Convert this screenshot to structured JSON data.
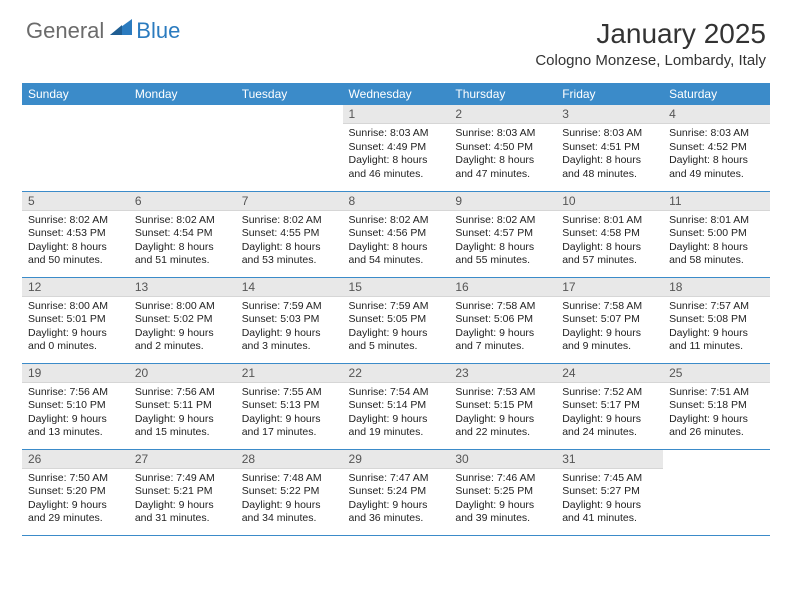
{
  "logo": {
    "general": "General",
    "blue": "Blue"
  },
  "title": "January 2025",
  "location": "Cologno Monzese, Lombardy, Italy",
  "colors": {
    "header_bg": "#3b8bc9",
    "header_text": "#ffffff",
    "daynum_bg": "#e8e8e8",
    "divider": "#3b8bc9",
    "logo_gray": "#6b6b6b",
    "logo_blue": "#2b7bbf"
  },
  "day_headers": [
    "Sunday",
    "Monday",
    "Tuesday",
    "Wednesday",
    "Thursday",
    "Friday",
    "Saturday"
  ],
  "weeks": [
    [
      null,
      null,
      null,
      {
        "n": "1",
        "sr": "8:03 AM",
        "ss": "4:49 PM",
        "dl": "8 hours and 46 minutes."
      },
      {
        "n": "2",
        "sr": "8:03 AM",
        "ss": "4:50 PM",
        "dl": "8 hours and 47 minutes."
      },
      {
        "n": "3",
        "sr": "8:03 AM",
        "ss": "4:51 PM",
        "dl": "8 hours and 48 minutes."
      },
      {
        "n": "4",
        "sr": "8:03 AM",
        "ss": "4:52 PM",
        "dl": "8 hours and 49 minutes."
      }
    ],
    [
      {
        "n": "5",
        "sr": "8:02 AM",
        "ss": "4:53 PM",
        "dl": "8 hours and 50 minutes."
      },
      {
        "n": "6",
        "sr": "8:02 AM",
        "ss": "4:54 PM",
        "dl": "8 hours and 51 minutes."
      },
      {
        "n": "7",
        "sr": "8:02 AM",
        "ss": "4:55 PM",
        "dl": "8 hours and 53 minutes."
      },
      {
        "n": "8",
        "sr": "8:02 AM",
        "ss": "4:56 PM",
        "dl": "8 hours and 54 minutes."
      },
      {
        "n": "9",
        "sr": "8:02 AM",
        "ss": "4:57 PM",
        "dl": "8 hours and 55 minutes."
      },
      {
        "n": "10",
        "sr": "8:01 AM",
        "ss": "4:58 PM",
        "dl": "8 hours and 57 minutes."
      },
      {
        "n": "11",
        "sr": "8:01 AM",
        "ss": "5:00 PM",
        "dl": "8 hours and 58 minutes."
      }
    ],
    [
      {
        "n": "12",
        "sr": "8:00 AM",
        "ss": "5:01 PM",
        "dl": "9 hours and 0 minutes."
      },
      {
        "n": "13",
        "sr": "8:00 AM",
        "ss": "5:02 PM",
        "dl": "9 hours and 2 minutes."
      },
      {
        "n": "14",
        "sr": "7:59 AM",
        "ss": "5:03 PM",
        "dl": "9 hours and 3 minutes."
      },
      {
        "n": "15",
        "sr": "7:59 AM",
        "ss": "5:05 PM",
        "dl": "9 hours and 5 minutes."
      },
      {
        "n": "16",
        "sr": "7:58 AM",
        "ss": "5:06 PM",
        "dl": "9 hours and 7 minutes."
      },
      {
        "n": "17",
        "sr": "7:58 AM",
        "ss": "5:07 PM",
        "dl": "9 hours and 9 minutes."
      },
      {
        "n": "18",
        "sr": "7:57 AM",
        "ss": "5:08 PM",
        "dl": "9 hours and 11 minutes."
      }
    ],
    [
      {
        "n": "19",
        "sr": "7:56 AM",
        "ss": "5:10 PM",
        "dl": "9 hours and 13 minutes."
      },
      {
        "n": "20",
        "sr": "7:56 AM",
        "ss": "5:11 PM",
        "dl": "9 hours and 15 minutes."
      },
      {
        "n": "21",
        "sr": "7:55 AM",
        "ss": "5:13 PM",
        "dl": "9 hours and 17 minutes."
      },
      {
        "n": "22",
        "sr": "7:54 AM",
        "ss": "5:14 PM",
        "dl": "9 hours and 19 minutes."
      },
      {
        "n": "23",
        "sr": "7:53 AM",
        "ss": "5:15 PM",
        "dl": "9 hours and 22 minutes."
      },
      {
        "n": "24",
        "sr": "7:52 AM",
        "ss": "5:17 PM",
        "dl": "9 hours and 24 minutes."
      },
      {
        "n": "25",
        "sr": "7:51 AM",
        "ss": "5:18 PM",
        "dl": "9 hours and 26 minutes."
      }
    ],
    [
      {
        "n": "26",
        "sr": "7:50 AM",
        "ss": "5:20 PM",
        "dl": "9 hours and 29 minutes."
      },
      {
        "n": "27",
        "sr": "7:49 AM",
        "ss": "5:21 PM",
        "dl": "9 hours and 31 minutes."
      },
      {
        "n": "28",
        "sr": "7:48 AM",
        "ss": "5:22 PM",
        "dl": "9 hours and 34 minutes."
      },
      {
        "n": "29",
        "sr": "7:47 AM",
        "ss": "5:24 PM",
        "dl": "9 hours and 36 minutes."
      },
      {
        "n": "30",
        "sr": "7:46 AM",
        "ss": "5:25 PM",
        "dl": "9 hours and 39 minutes."
      },
      {
        "n": "31",
        "sr": "7:45 AM",
        "ss": "5:27 PM",
        "dl": "9 hours and 41 minutes."
      },
      null
    ]
  ],
  "labels": {
    "sunrise": "Sunrise: ",
    "sunset": "Sunset: ",
    "daylight": "Daylight: "
  }
}
